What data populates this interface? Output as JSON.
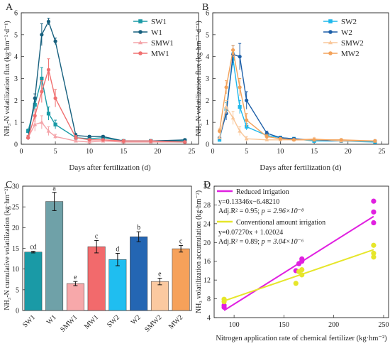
{
  "chart_data": [
    {
      "panel": "A",
      "type": "line",
      "xlabel": "Days after fertilization (d)",
      "ylabel": "NH₃-N volatilization flux (kg·hm⁻²·d⁻¹)",
      "xlim": [
        0,
        26
      ],
      "ylim": [
        0,
        6
      ],
      "xticks": [
        0,
        5,
        10,
        15,
        20,
        25
      ],
      "yticks": [
        0,
        1,
        2,
        3,
        4,
        5,
        6
      ],
      "legend_position": "top-right",
      "series": [
        {
          "name": "SW1",
          "color": "#1a9aa6",
          "marker": "square",
          "x": [
            1,
            2,
            3,
            4,
            5,
            8,
            10,
            12,
            15,
            19,
            24
          ],
          "y": [
            0.6,
            1.8,
            3.0,
            1.4,
            0.9,
            0.3,
            0.25,
            0.3,
            0.15,
            0.15,
            0.15
          ],
          "err": [
            0.1,
            0.3,
            0.5,
            0.3,
            0.2,
            0.1,
            0.05,
            0.1,
            0.05,
            0.05,
            0.05
          ]
        },
        {
          "name": "W1",
          "color": "#17607e",
          "marker": "circle",
          "x": [
            1,
            2,
            3,
            4,
            5,
            8,
            10,
            12,
            15,
            19,
            24
          ],
          "y": [
            0.3,
            2.1,
            5.0,
            5.6,
            4.7,
            0.4,
            0.35,
            0.35,
            0.15,
            0.15,
            0.2
          ],
          "err": [
            0.1,
            0.2,
            0.5,
            0.15,
            0.15,
            0.1,
            0.05,
            0.05,
            0.05,
            0.05,
            0.05
          ]
        },
        {
          "name": "SMW1",
          "color": "#f4a3a8",
          "marker": "triangle",
          "x": [
            1,
            2,
            3,
            4,
            5,
            8,
            10,
            12,
            15,
            19,
            24
          ],
          "y": [
            0.3,
            0.9,
            1.0,
            0.6,
            0.35,
            0.15,
            0.1,
            0.15,
            0.1,
            0.1,
            0.1
          ],
          "err": [
            0.1,
            0.3,
            0.3,
            0.2,
            0.1,
            0.05,
            0.05,
            0.05,
            0.05,
            0.05,
            0.05
          ]
        },
        {
          "name": "MW1",
          "color": "#f07070",
          "marker": "circle",
          "x": [
            1,
            2,
            3,
            4,
            5,
            8,
            10,
            12,
            15,
            19,
            24
          ],
          "y": [
            0.3,
            1.3,
            2.4,
            3.4,
            2.1,
            0.3,
            0.2,
            0.2,
            0.15,
            0.15,
            0.1
          ],
          "err": [
            0.1,
            0.3,
            0.5,
            0.5,
            0.4,
            0.1,
            0.05,
            0.05,
            0.05,
            0.05,
            0.05
          ]
        }
      ]
    },
    {
      "panel": "B",
      "type": "line",
      "xlabel": "Days after fertilization (d)",
      "ylabel": "NH₃-N volatilization flux (kg·hm⁻²·d⁻¹)",
      "xlim": [
        0,
        26
      ],
      "ylim": [
        0,
        6
      ],
      "xticks": [
        0,
        5,
        10,
        15,
        20,
        25
      ],
      "yticks": [
        0,
        1,
        2,
        3,
        4,
        5,
        6
      ],
      "legend_position": "top-right",
      "series": [
        {
          "name": "SW2",
          "color": "#1fb8ec",
          "marker": "square",
          "x": [
            1,
            2,
            3,
            4,
            5,
            8,
            10,
            12,
            15,
            19,
            24
          ],
          "y": [
            0.2,
            1.6,
            3.9,
            1.7,
            0.8,
            0.4,
            0.3,
            0.25,
            0.15,
            0.15,
            0.1
          ],
          "err": [
            0.05,
            0.3,
            0.3,
            0.3,
            0.15,
            0.1,
            0.05,
            0.05,
            0.05,
            0.05,
            0.05
          ]
        },
        {
          "name": "W2",
          "color": "#1d5fa8",
          "marker": "circle",
          "x": [
            1,
            2,
            3,
            4,
            5,
            8,
            10,
            12,
            15,
            19,
            24
          ],
          "y": [
            0.3,
            1.4,
            4.1,
            4.0,
            2.0,
            0.5,
            0.3,
            0.25,
            0.2,
            0.15,
            0.15
          ],
          "err": [
            0.05,
            0.3,
            0.4,
            0.6,
            0.4,
            0.1,
            0.05,
            0.05,
            0.05,
            0.05,
            0.05
          ]
        },
        {
          "name": "SMW2",
          "color": "#f9c79a",
          "marker": "triangle",
          "x": [
            1,
            2,
            3,
            4,
            5,
            8,
            10,
            12,
            15,
            19,
            24
          ],
          "y": [
            0.3,
            1.7,
            1.2,
            0.6,
            0.25,
            0.2,
            0.2,
            0.2,
            0.25,
            0.15,
            0.15
          ],
          "err": [
            0.05,
            0.3,
            0.3,
            0.2,
            0.1,
            0.05,
            0.05,
            0.05,
            0.05,
            0.05,
            0.05
          ]
        },
        {
          "name": "MW2",
          "color": "#f3a25a",
          "marker": "circle",
          "x": [
            1,
            2,
            3,
            4,
            5,
            8,
            10,
            12,
            15,
            19,
            24
          ],
          "y": [
            0.6,
            2.6,
            4.3,
            2.6,
            1.1,
            0.35,
            0.25,
            0.2,
            0.2,
            0.2,
            0.15
          ],
          "err": [
            0.1,
            0.3,
            0.2,
            0.4,
            0.3,
            0.1,
            0.05,
            0.05,
            0.05,
            0.05,
            0.05
          ]
        }
      ]
    },
    {
      "panel": "C",
      "type": "bar",
      "ylabel": "NH₃-N cumulative volatilization (kg·hm⁻²)",
      "ylim": [
        0,
        30
      ],
      "yticks": [
        0,
        5,
        10,
        15,
        20,
        25,
        30
      ],
      "categories": [
        "SW1",
        "W1",
        "SMW1",
        "MW1",
        "SW2",
        "W2",
        "SMW2",
        "MW2"
      ],
      "values": [
        14.1,
        26.3,
        6.5,
        15.4,
        12.3,
        17.8,
        7.0,
        14.9
      ],
      "errors": [
        0.2,
        2.2,
        0.5,
        1.5,
        1.5,
        1.2,
        0.8,
        0.8
      ],
      "letters": [
        "cd",
        "a",
        "e",
        "c",
        "d",
        "b",
        "e",
        "c"
      ],
      "colors": [
        "#1a9aa6",
        "#6fa1a8",
        "#f7a8aa",
        "#f26a6c",
        "#1fbef0",
        "#2466b3",
        "#fbc9a0",
        "#f6a15a"
      ]
    },
    {
      "panel": "D",
      "type": "scatter",
      "xlabel": "Nitrogen application rate of chemical fertilizer (kg·hm⁻²)",
      "ylabel": "NH₃ volatilization accumulation (kg·hm⁻²)",
      "xlim": [
        80,
        255
      ],
      "ylim": [
        4,
        32
      ],
      "xticks": [
        100,
        150,
        200,
        250
      ],
      "yticks": [
        4,
        8,
        12,
        16,
        20,
        24,
        28,
        32
      ],
      "legend_position": "top-left",
      "series": [
        {
          "name": "Reduced irrigation",
          "color": "#e020e0",
          "equation": "y=0.13346x−6.48210",
          "stats": "Adj.R² = 0.95; ",
          "p": "p = 2.96×10⁻⁸",
          "fit": {
            "slope": 0.13346,
            "intercept": -6.4821,
            "x_range": [
              90,
              240
            ]
          },
          "points": [
            [
              90,
              6.2
            ],
            [
              90,
              6.6
            ],
            [
              162,
              14.0
            ],
            [
              165,
              15.5
            ],
            [
              168,
              16.5
            ],
            [
              168,
              16.0
            ],
            [
              240,
              24.2
            ],
            [
              240,
              26.5
            ],
            [
              240,
              28.8
            ]
          ]
        },
        {
          "name": "Conventional amount irrigation",
          "color": "#e6e62a",
          "equation": "y=0.07270x + 1.02024",
          "stats": "Adj.R² = 0.89; ",
          "p": "p = 3.04×10⁻⁶",
          "fit": {
            "slope": 0.0727,
            "intercept": 1.02024,
            "x_range": [
              90,
              240
            ]
          },
          "points": [
            [
              90,
              7.4
            ],
            [
              90,
              7.9
            ],
            [
              162,
              11.3
            ],
            [
              165,
              13.8
            ],
            [
              168,
              13.1
            ],
            [
              168,
              14.2
            ],
            [
              240,
              16.9
            ],
            [
              240,
              17.7
            ],
            [
              240,
              19.4
            ]
          ]
        }
      ]
    }
  ]
}
